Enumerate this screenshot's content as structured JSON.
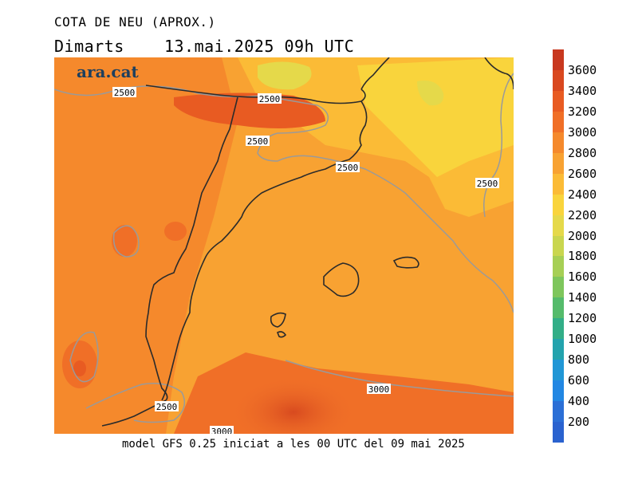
{
  "header": {
    "title": "COTA DE NEU (APROX.)",
    "day": "Dimarts",
    "datetime": "13.mai.2025 09h UTC"
  },
  "footer": {
    "text": "model GFS 0.25 iniciat a les 00 UTC del 09 mai 2025"
  },
  "logo": {
    "text": "ara.cat",
    "color": "#1d3f5e"
  },
  "map": {
    "contour_labels": [
      "2500",
      "2500",
      "2500",
      "2500",
      "2500",
      "2500",
      "3000",
      "3000"
    ]
  },
  "legend": {
    "labels": [
      "3600",
      "3400",
      "3200",
      "3000",
      "2800",
      "2600",
      "2400",
      "2200",
      "2000",
      "1800",
      "1600",
      "1400",
      "1200",
      "1000",
      "800",
      "600",
      "400",
      "200"
    ],
    "colors": [
      "#c8381f",
      "#d9481f",
      "#e85b22",
      "#f06f27",
      "#f5892c",
      "#f8a232",
      "#fbbb36",
      "#f9d43c",
      "#e5d94a",
      "#c9d64f",
      "#a6cf55",
      "#7ec65c",
      "#55bb6b",
      "#32ae87",
      "#23a3ad",
      "#2197d6",
      "#2287e3",
      "#2b6fd6"
    ]
  }
}
